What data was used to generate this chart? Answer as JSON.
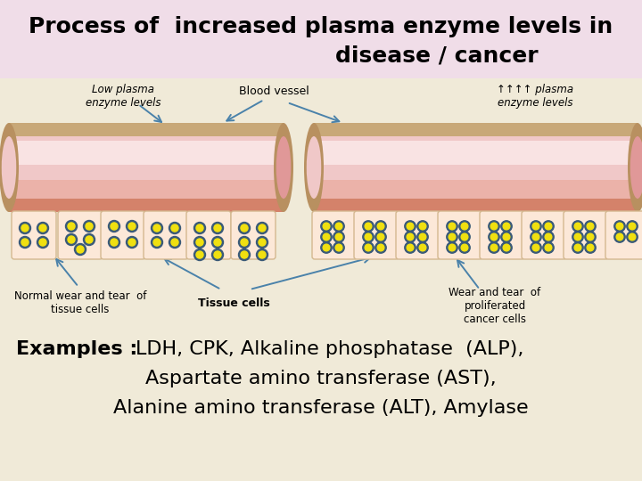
{
  "title_line1": "Process of  increased plasma enzyme levels in",
  "title_line2": "disease / cancer",
  "title_bg": "#f0dde8",
  "main_bg": "#f0ead8",
  "vessel_outer_top": "#c8a878",
  "vessel_outer_bot": "#d4826a",
  "vessel_inner": "#f0c8c8",
  "vessel_inner_light": "#fbe8e8",
  "vessel_inner_dark": "#e8a090",
  "cell_border": "#d4b890",
  "cell_fill": "#fce8d8",
  "enzyme_outer": "#3a5a78",
  "enzyme_inner": "#f0e010",
  "arrow_color": "#4a82aa",
  "label_left": "Low plasma\nenzyme levels",
  "label_vessel": "Blood vessel",
  "label_right": "↑↑↑↑ plasma\nenzyme levels",
  "label_normal": "Normal wear and tear  of\ntissue cells",
  "label_tissue": "Tissue cells",
  "label_cancer": "Wear and tear  of\nproliferated\ncancer cells"
}
